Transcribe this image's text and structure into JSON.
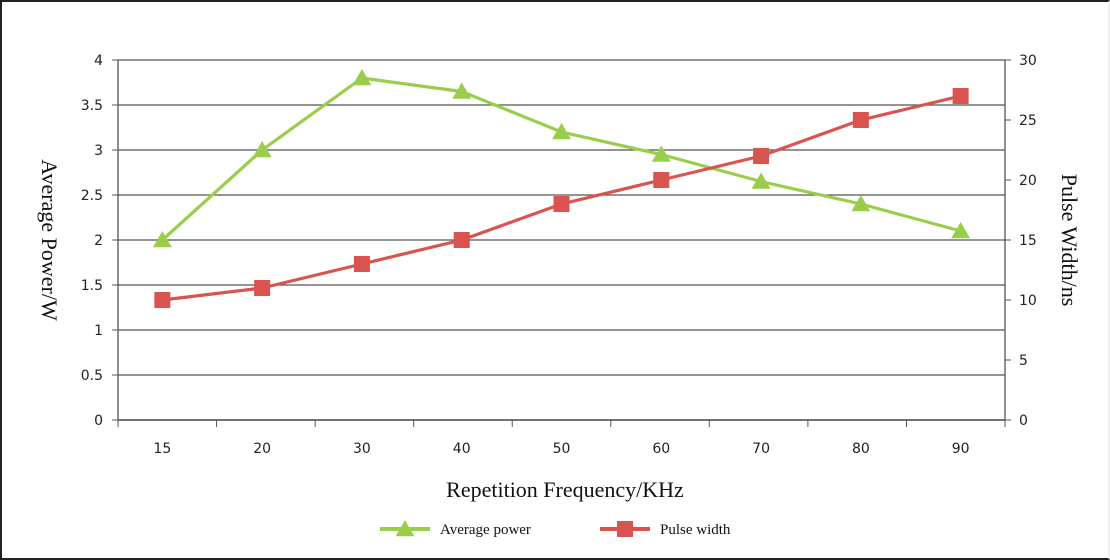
{
  "chart_data": {
    "type": "line",
    "categories": [
      "15",
      "20",
      "30",
      "40",
      "50",
      "60",
      "70",
      "80",
      "90"
    ],
    "xlabel": "Repetition  Frequency/KHz",
    "ylabel_left": "Average Power/W",
    "ylabel_right": "Pulse Width/ns",
    "ylim_left": [
      0,
      4
    ],
    "ylim_right": [
      0,
      30
    ],
    "yticks_left": [
      "0",
      "0.5",
      "1",
      "1.5",
      "2",
      "2.5",
      "3",
      "3.5",
      "4"
    ],
    "yticks_right": [
      "0",
      "5",
      "10",
      "15",
      "20",
      "25",
      "30"
    ],
    "grid": true,
    "legend_position": "bottom",
    "series": [
      {
        "name": "Average power",
        "axis": "left",
        "marker": "triangle",
        "color": "#9acd4b",
        "values": [
          2.0,
          3.0,
          3.8,
          3.65,
          3.2,
          2.95,
          2.65,
          2.4,
          2.1
        ]
      },
      {
        "name": "Pulse width",
        "axis": "right",
        "marker": "square",
        "color": "#d9534f",
        "values": [
          10,
          11,
          13,
          15,
          18,
          20,
          22,
          25,
          27
        ]
      }
    ]
  }
}
